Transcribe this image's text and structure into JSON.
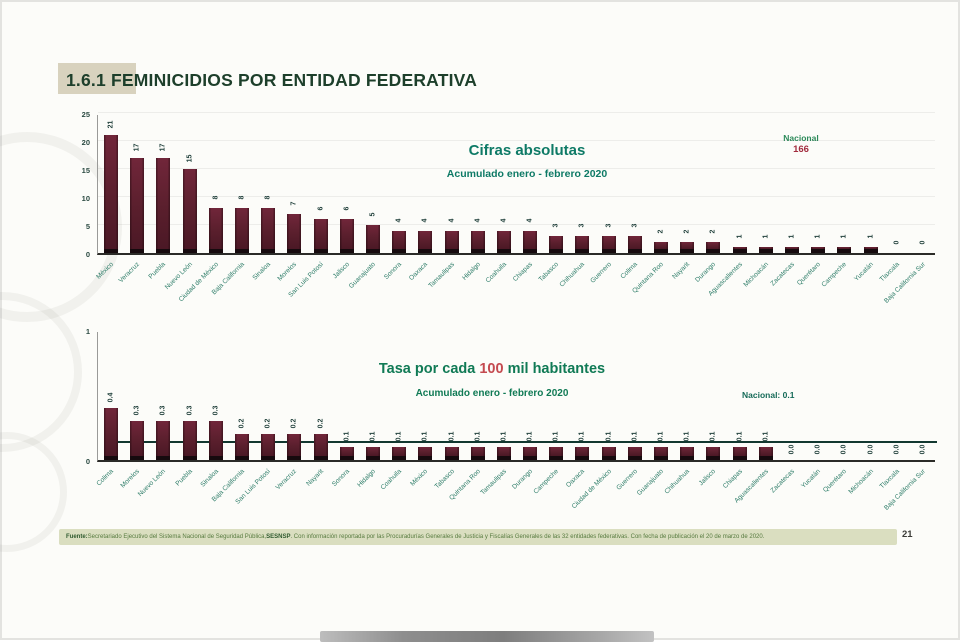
{
  "slide": {
    "title": "1.6.1 FEMINICIDIOS POR ENTIDAD FEDERATIVA",
    "page_number": "21"
  },
  "footer": {
    "label": "Fuente:",
    "text_before": " Secretariado Ejecutivo del Sistema Nacional de Seguridad Pública, ",
    "sesnsp": "SESNSP",
    "text_after": ". Con información reportada por las Procuradurías Generales de Justicia y Fiscalías Generales de las 32 entidades federativas. Con fecha de publicación el 20 de marzo de 2020."
  },
  "colors": {
    "bar": "#5a1f2d",
    "title_green": "#1d3f2b",
    "chart_title_teal": "#0e7a66",
    "national_value_red": "#a22c3e",
    "highlight_red": "#c44a50",
    "axis_label_teal": "#2e7d69",
    "footer_strip": "#dadec0"
  },
  "chart_data": [
    {
      "type": "bar",
      "title": "Cifras absolutas",
      "subtitle": "Acumulado enero - febrero 2020",
      "annotation_label": "Nacional",
      "annotation_value": "166",
      "ylim": [
        0,
        25
      ],
      "yticks": [
        0,
        5,
        10,
        15,
        20,
        25
      ],
      "grid": true,
      "value_format": "int",
      "legend": "none",
      "categories": [
        "México",
        "Veracruz",
        "Puebla",
        "Nuevo León",
        "Ciudad de México",
        "Baja California",
        "Sinaloa",
        "Morelos",
        "San Luis Potosí",
        "Jalisco",
        "Guanajuato",
        "Sonora",
        "Oaxaca",
        "Tamaulipas",
        "Hidalgo",
        "Coahuila",
        "Chiapas",
        "Tabasco",
        "Chihuahua",
        "Guerrero",
        "Colima",
        "Quintana Roo",
        "Nayarit",
        "Durango",
        "Aguascalientes",
        "Michoacán",
        "Zacatecas",
        "Querétaro",
        "Campeche",
        "Yucatán",
        "Tlaxcala",
        "Baja California Sur"
      ],
      "values": [
        21,
        17,
        17,
        15,
        8,
        8,
        8,
        7,
        6,
        6,
        5,
        4,
        4,
        4,
        4,
        4,
        4,
        3,
        3,
        3,
        3,
        2,
        2,
        2,
        1,
        1,
        1,
        1,
        1,
        1,
        0,
        0
      ]
    },
    {
      "type": "bar",
      "title_pre": "Tasa por cada ",
      "title_highlight": "100",
      "title_post": " mil habitantes",
      "subtitle": "Acumulado enero - febrero 2020",
      "annotation_label": "Nacional:",
      "annotation_value": "0.1",
      "reference_line": 0.1,
      "ylim": [
        0,
        1
      ],
      "yticks": [
        0,
        1
      ],
      "grid": false,
      "value_format": "1dp",
      "legend": "none",
      "categories": [
        "Colima",
        "Morelos",
        "Nuevo León",
        "Puebla",
        "Sinaloa",
        "Baja California",
        "San Luis Potosí",
        "Veracruz",
        "Nayarit",
        "Sonora",
        "Hidalgo",
        "Coahuila",
        "México",
        "Tabasco",
        "Quintana Roo",
        "Tamaulipas",
        "Durango",
        "Campeche",
        "Oaxaca",
        "Ciudad de México",
        "Guerrero",
        "Guanajuato",
        "Chihuahua",
        "Jalisco",
        "Chiapas",
        "Aguascalientes",
        "Zacatecas",
        "Yucatán",
        "Querétaro",
        "Michoacán",
        "Tlaxcala",
        "Baja California Sur"
      ],
      "values": [
        0.4,
        0.3,
        0.3,
        0.3,
        0.3,
        0.2,
        0.2,
        0.2,
        0.2,
        0.1,
        0.1,
        0.1,
        0.1,
        0.1,
        0.1,
        0.1,
        0.1,
        0.1,
        0.1,
        0.1,
        0.1,
        0.1,
        0.1,
        0.1,
        0.1,
        0.1,
        0.0,
        0.0,
        0.0,
        0.0,
        0.0,
        0.0
      ]
    }
  ]
}
